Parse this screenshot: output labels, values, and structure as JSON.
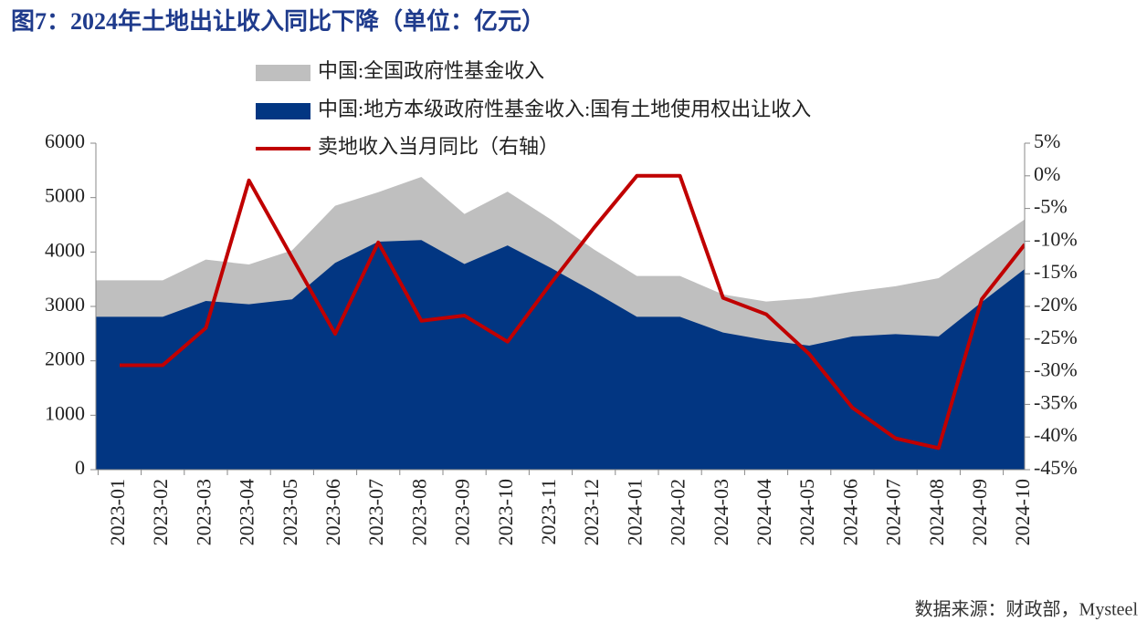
{
  "chart_data": {
    "type": "area_line",
    "title": "图7：2024年土地出让收入同比下降（单位：亿元）",
    "source": "数据来源：财政部，Mysteel",
    "categories": [
      "2023-01",
      "2023-02",
      "2023-03",
      "2023-04",
      "2023-05",
      "2023-06",
      "2023-07",
      "2023-08",
      "2023-09",
      "2023-10",
      "2023-11",
      "2023-12",
      "2024-01",
      "2024-02",
      "2024-03",
      "2024-04",
      "2024-05",
      "2024-06",
      "2024-07",
      "2024-08",
      "2024-09",
      "2024-10"
    ],
    "series": [
      {
        "name": "中国:全国政府性基金收入",
        "color": "#bfbfbf",
        "kind": "area",
        "values": [
          3480,
          3480,
          3860,
          3770,
          4030,
          4850,
          5100,
          5380,
          4700,
          5110,
          4600,
          4050,
          3560,
          3560,
          3220,
          3090,
          3150,
          3270,
          3370,
          3520,
          4060,
          4600
        ]
      },
      {
        "name": "中国:地方本级政府性基金收入:国有土地使用权出让收入",
        "color": "#023682",
        "kind": "area",
        "values": [
          2810,
          2810,
          3100,
          3040,
          3130,
          3800,
          4190,
          4220,
          3780,
          4120,
          3710,
          3270,
          2810,
          2810,
          2520,
          2380,
          2280,
          2450,
          2490,
          2450,
          3080,
          3690
        ]
      },
      {
        "name": "卖地收入当月同比（右轴）",
        "color": "#c00000",
        "kind": "line",
        "axis": "y2",
        "values": [
          -29,
          -29,
          -23.3,
          -0.7,
          -12.5,
          -24.2,
          -10.2,
          -22.2,
          -21.4,
          -25.4,
          -16.5,
          -8,
          0,
          0,
          -18.7,
          -21.2,
          -27.3,
          -35.5,
          -40.2,
          -41.7,
          -18.9,
          -10.5
        ]
      }
    ],
    "ylim": [
      0,
      6000
    ],
    "yticks": [
      0,
      1000,
      2000,
      3000,
      4000,
      5000,
      6000
    ],
    "y2lim": [
      -45,
      5
    ],
    "y2ticks": [
      {
        "value": 5,
        "label": "5%"
      },
      {
        "value": 0,
        "label": "0%"
      },
      {
        "value": -5,
        "label": "-5%"
      },
      {
        "value": -10,
        "label": "-10%"
      },
      {
        "value": -15,
        "label": "-15%"
      },
      {
        "value": -20,
        "label": "-20%"
      },
      {
        "value": -25,
        "label": "-25%"
      },
      {
        "value": -30,
        "label": "-30%"
      },
      {
        "value": -35,
        "label": "-35%"
      },
      {
        "value": -40,
        "label": "-40%"
      },
      {
        "value": -45,
        "label": "-45%"
      }
    ]
  }
}
